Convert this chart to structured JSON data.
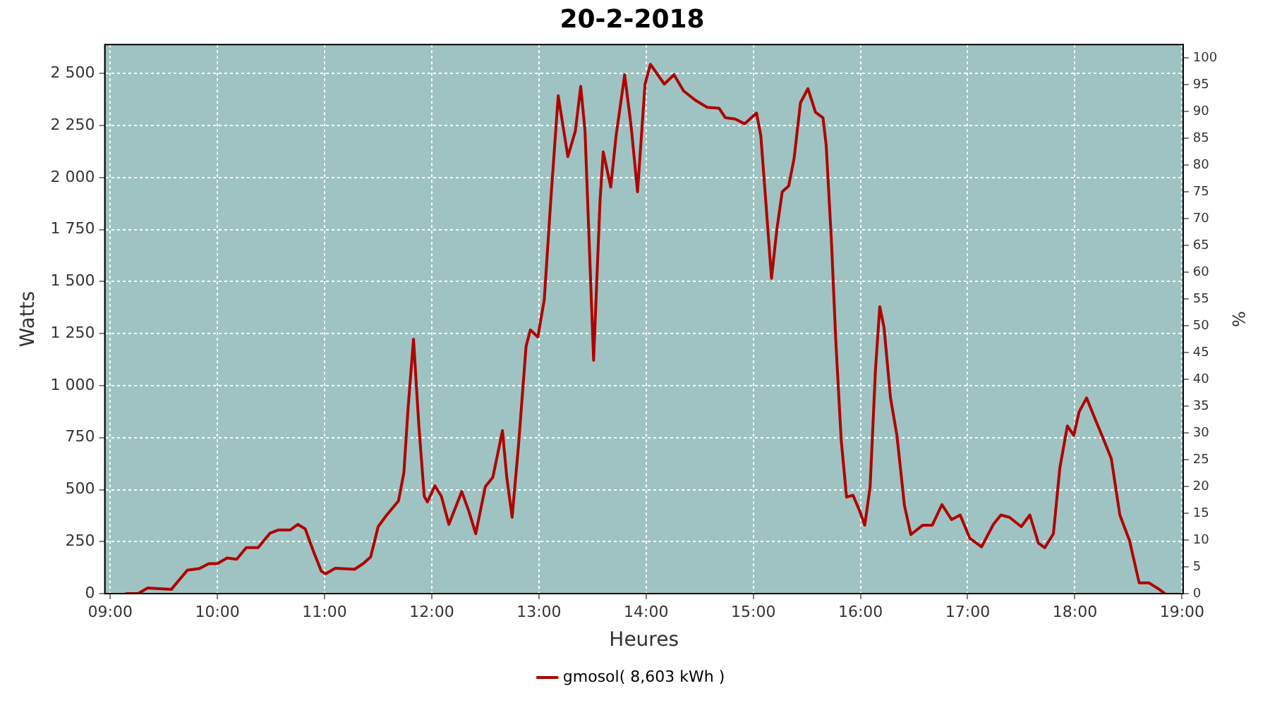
{
  "chart_data": {
    "type": "line",
    "title": "20-2-2018",
    "xlabel": "Heures",
    "ylabel": "Watts",
    "y2label": "%",
    "xlim": [
      8.95,
      19.01
    ],
    "xticks": [
      {
        "value": 9,
        "label": "09:00"
      },
      {
        "value": 10,
        "label": "10:00"
      },
      {
        "value": 11,
        "label": "11:00"
      },
      {
        "value": 12,
        "label": "12:00"
      },
      {
        "value": 13,
        "label": "13:00"
      },
      {
        "value": 14,
        "label": "14:00"
      },
      {
        "value": 15,
        "label": "15:00"
      },
      {
        "value": 16,
        "label": "16:00"
      },
      {
        "value": 17,
        "label": "17:00"
      },
      {
        "value": 18,
        "label": "18:00"
      },
      {
        "value": 19,
        "label": "19:00"
      }
    ],
    "ylim": [
      0,
      2640
    ],
    "yticks": [
      0,
      250,
      500,
      750,
      {
        "value": 1000,
        "label": "1 000"
      },
      {
        "value": 1250,
        "label": "1 250"
      },
      {
        "value": 1500,
        "label": "1 500"
      },
      {
        "value": 1750,
        "label": "1 750"
      },
      {
        "value": 2000,
        "label": "2 000"
      },
      {
        "value": 2250,
        "label": "2 250"
      },
      {
        "value": 2500,
        "label": "2 500"
      }
    ],
    "y2lim": [
      0,
      102.5
    ],
    "y2ticks": [
      0,
      5,
      10,
      15,
      20,
      25,
      30,
      35,
      40,
      45,
      50,
      55,
      60,
      65,
      70,
      75,
      80,
      85,
      90,
      95,
      100
    ],
    "grid": true,
    "legend": "bottom",
    "marker": "none",
    "line_style": "solid",
    "series": [
      {
        "name": "gmosol( 8,603 kWh )",
        "color": "#b00000",
        "x": [
          9.15,
          9.26,
          9.35,
          9.57,
          9.72,
          9.83,
          9.92,
          10.0,
          10.09,
          10.18,
          10.27,
          10.38,
          10.49,
          10.57,
          10.68,
          10.75,
          10.82,
          10.9,
          10.97,
          11.01,
          11.1,
          11.28,
          11.36,
          11.43,
          11.5,
          11.58,
          11.69,
          11.74,
          11.78,
          11.83,
          11.88,
          11.93,
          11.96,
          12.03,
          12.09,
          12.16,
          12.28,
          12.35,
          12.41,
          12.5,
          12.57,
          12.66,
          12.7,
          12.75,
          12.81,
          12.88,
          12.92,
          12.99,
          13.05,
          13.11,
          13.18,
          13.27,
          13.34,
          13.39,
          13.43,
          13.51,
          13.57,
          13.6,
          13.67,
          13.72,
          13.8,
          13.86,
          13.92,
          13.99,
          14.04,
          14.17,
          14.26,
          14.35,
          14.46,
          14.57,
          14.68,
          14.74,
          14.83,
          14.92,
          15.03,
          15.07,
          15.11,
          15.17,
          15.22,
          15.27,
          15.33,
          15.38,
          15.44,
          15.51,
          15.58,
          15.65,
          15.68,
          15.73,
          15.77,
          15.82,
          15.87,
          15.93,
          15.99,
          16.04,
          16.09,
          16.14,
          16.18,
          16.22,
          16.28,
          16.34,
          16.41,
          16.47,
          16.58,
          16.67,
          16.76,
          16.85,
          16.93,
          17.02,
          17.13,
          17.24,
          17.31,
          17.39,
          17.5,
          17.58,
          17.66,
          17.72,
          17.8,
          17.86,
          17.93,
          17.99,
          18.04,
          18.11,
          18.18,
          18.27,
          18.34,
          18.42,
          18.51,
          18.6,
          18.69,
          18.78,
          18.84
        ],
        "values": [
          0,
          0,
          27,
          20,
          113,
          120,
          144,
          144,
          171,
          165,
          221,
          221,
          290,
          306,
          306,
          333,
          311,
          198,
          108,
          95,
          122,
          117,
          144,
          176,
          322,
          378,
          446,
          581,
          897,
          1223,
          806,
          468,
          441,
          518,
          468,
          333,
          491,
          390,
          288,
          514,
          559,
          784,
          559,
          367,
          716,
          1189,
          1268,
          1234,
          1414,
          1887,
          2394,
          2101,
          2225,
          2439,
          2225,
          1122,
          1887,
          2124,
          1955,
          2202,
          2495,
          2248,
          1932,
          2450,
          2545,
          2450,
          2495,
          2417,
          2372,
          2338,
          2334,
          2288,
          2282,
          2259,
          2311,
          2203,
          1932,
          1516,
          1752,
          1932,
          1960,
          2090,
          2360,
          2428,
          2315,
          2288,
          2157,
          1684,
          1212,
          739,
          464,
          473,
          401,
          329,
          514,
          1077,
          1380,
          1279,
          941,
          761,
          424,
          284,
          329,
          329,
          428,
          356,
          378,
          266,
          225,
          333,
          378,
          367,
          322,
          378,
          243,
          221,
          288,
          604,
          806,
          761,
          874,
          941,
          851,
          739,
          649,
          378,
          255,
          52,
          52,
          23,
          0
        ]
      }
    ]
  }
}
